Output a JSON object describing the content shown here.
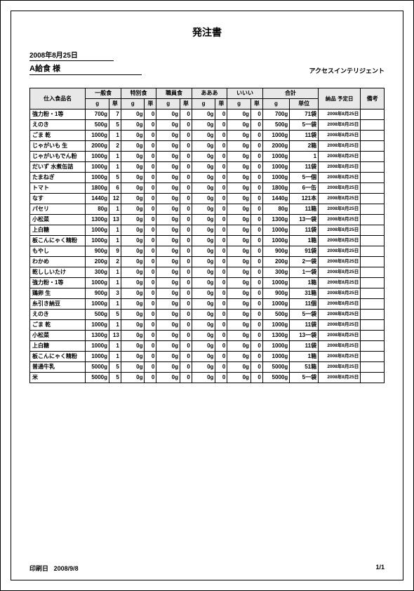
{
  "title": "発注書",
  "order_date": "2008年8月25日",
  "vendor": "A給食  様",
  "company": "アクセスインテリジェント",
  "footer": {
    "print_label": "印刷日",
    "print_date": "2008/9/8",
    "page": "1/1"
  },
  "table": {
    "headers": {
      "name": "仕入食品名",
      "cat1": "一般食",
      "cat2": "特別食",
      "cat3": "職員食",
      "cat4": "あああ",
      "cat5": "いいい",
      "total": "合計",
      "delivery": "納品\n予定日",
      "note": "備考",
      "g": "g",
      "u": "単",
      "tu": "単位"
    },
    "rows": [
      {
        "name": "強力粉・1等",
        "c1g": "700g",
        "c1u": "7",
        "c2g": "0g",
        "c2u": "0",
        "c3g": "0g",
        "c3u": "0",
        "c4g": "0g",
        "c4u": "0",
        "c5g": "0g",
        "c5u": "0",
        "tg": "700g",
        "tu": "71袋",
        "dd": "2008年8月25日"
      },
      {
        "name": "えのき",
        "c1g": "500g",
        "c1u": "5",
        "c2g": "0g",
        "c2u": "0",
        "c3g": "0g",
        "c3u": "0",
        "c4g": "0g",
        "c4u": "0",
        "c5g": "0g",
        "c5u": "0",
        "tg": "500g",
        "tu": "5一袋",
        "dd": "2008年8月25日"
      },
      {
        "name": "ごま 乾",
        "c1g": "1000g",
        "c1u": "1",
        "c2g": "0g",
        "c2u": "0",
        "c3g": "0g",
        "c3u": "0",
        "c4g": "0g",
        "c4u": "0",
        "c5g": "0g",
        "c5u": "0",
        "tg": "1000g",
        "tu": "11袋",
        "dd": "2008年8月25日"
      },
      {
        "name": "じゃがいも 生",
        "c1g": "2000g",
        "c1u": "2",
        "c2g": "0g",
        "c2u": "0",
        "c3g": "0g",
        "c3u": "0",
        "c4g": "0g",
        "c4u": "0",
        "c5g": "0g",
        "c5u": "0",
        "tg": "2000g",
        "tu": "2箱",
        "dd": "2008年8月25日"
      },
      {
        "name": "じゃがいもでん粉",
        "c1g": "1000g",
        "c1u": "1",
        "c2g": "0g",
        "c2u": "0",
        "c3g": "0g",
        "c3u": "0",
        "c4g": "0g",
        "c4u": "0",
        "c5g": "0g",
        "c5u": "0",
        "tg": "1000g",
        "tu": "1",
        "dd": "2008年8月25日"
      },
      {
        "name": "だいず 水煮缶詰",
        "c1g": "1000g",
        "c1u": "1",
        "c2g": "0g",
        "c2u": "0",
        "c3g": "0g",
        "c3u": "0",
        "c4g": "0g",
        "c4u": "0",
        "c5g": "0g",
        "c5u": "0",
        "tg": "1000g",
        "tu": "11袋",
        "dd": "2008年8月25日"
      },
      {
        "name": "たまねぎ",
        "c1g": "1000g",
        "c1u": "5",
        "c2g": "0g",
        "c2u": "0",
        "c3g": "0g",
        "c3u": "0",
        "c4g": "0g",
        "c4u": "0",
        "c5g": "0g",
        "c5u": "0",
        "tg": "1000g",
        "tu": "5一個",
        "dd": "2008年8月25日"
      },
      {
        "name": "トマト",
        "c1g": "1800g",
        "c1u": "6",
        "c2g": "0g",
        "c2u": "0",
        "c3g": "0g",
        "c3u": "0",
        "c4g": "0g",
        "c4u": "0",
        "c5g": "0g",
        "c5u": "0",
        "tg": "1800g",
        "tu": "6一缶",
        "dd": "2008年8月25日"
      },
      {
        "name": "なす",
        "c1g": "1440g",
        "c1u": "12",
        "c2g": "0g",
        "c2u": "0",
        "c3g": "0g",
        "c3u": "0",
        "c4g": "0g",
        "c4u": "0",
        "c5g": "0g",
        "c5u": "0",
        "tg": "1440g",
        "tu": "121本",
        "dd": "2008年8月25日"
      },
      {
        "name": "パセリ",
        "c1g": "80g",
        "c1u": "1",
        "c2g": "0g",
        "c2u": "0",
        "c3g": "0g",
        "c3u": "0",
        "c4g": "0g",
        "c4u": "0",
        "c5g": "0g",
        "c5u": "0",
        "tg": "80g",
        "tu": "11箱",
        "dd": "2008年8月25日"
      },
      {
        "name": "小松菜",
        "c1g": "1300g",
        "c1u": "13",
        "c2g": "0g",
        "c2u": "0",
        "c3g": "0g",
        "c3u": "0",
        "c4g": "0g",
        "c4u": "0",
        "c5g": "0g",
        "c5u": "0",
        "tg": "1300g",
        "tu": "13一袋",
        "dd": "2008年8月25日"
      },
      {
        "name": "上白糖",
        "c1g": "1000g",
        "c1u": "1",
        "c2g": "0g",
        "c2u": "0",
        "c3g": "0g",
        "c3u": "0",
        "c4g": "0g",
        "c4u": "0",
        "c5g": "0g",
        "c5u": "0",
        "tg": "1000g",
        "tu": "11袋",
        "dd": "2008年8月25日"
      },
      {
        "name": "板こんにゃく精粉",
        "c1g": "1000g",
        "c1u": "1",
        "c2g": "0g",
        "c2u": "0",
        "c3g": "0g",
        "c3u": "0",
        "c4g": "0g",
        "c4u": "0",
        "c5g": "0g",
        "c5u": "0",
        "tg": "1000g",
        "tu": "1箱",
        "dd": "2008年8月25日"
      },
      {
        "name": "もやし",
        "c1g": "900g",
        "c1u": "9",
        "c2g": "0g",
        "c2u": "0",
        "c3g": "0g",
        "c3u": "0",
        "c4g": "0g",
        "c4u": "0",
        "c5g": "0g",
        "c5u": "0",
        "tg": "900g",
        "tu": "91袋",
        "dd": "2008年8月25日"
      },
      {
        "name": "わかめ",
        "c1g": "200g",
        "c1u": "2",
        "c2g": "0g",
        "c2u": "0",
        "c3g": "0g",
        "c3u": "0",
        "c4g": "0g",
        "c4u": "0",
        "c5g": "0g",
        "c5u": "0",
        "tg": "200g",
        "tu": "2一袋",
        "dd": "2008年8月25日"
      },
      {
        "name": "乾ししいたけ",
        "c1g": "300g",
        "c1u": "1",
        "c2g": "0g",
        "c2u": "0",
        "c3g": "0g",
        "c3u": "0",
        "c4g": "0g",
        "c4u": "0",
        "c5g": "0g",
        "c5u": "0",
        "tg": "300g",
        "tu": "1一袋",
        "dd": "2008年8月25日"
      },
      {
        "name": "強力粉・1等",
        "c1g": "1000g",
        "c1u": "1",
        "c2g": "0g",
        "c2u": "0",
        "c3g": "0g",
        "c3u": "0",
        "c4g": "0g",
        "c4u": "0",
        "c5g": "0g",
        "c5u": "0",
        "tg": "1000g",
        "tu": "1箱",
        "dd": "2008年8月25日"
      },
      {
        "name": "鶏卵 生",
        "c1g": "900g",
        "c1u": "3",
        "c2g": "0g",
        "c2u": "0",
        "c3g": "0g",
        "c3u": "0",
        "c4g": "0g",
        "c4u": "0",
        "c5g": "0g",
        "c5u": "0",
        "tg": "900g",
        "tu": "31箱",
        "dd": "2008年8月25日"
      },
      {
        "name": "糸引き納豆",
        "c1g": "1000g",
        "c1u": "1",
        "c2g": "0g",
        "c2u": "0",
        "c3g": "0g",
        "c3u": "0",
        "c4g": "0g",
        "c4u": "0",
        "c5g": "0g",
        "c5u": "0",
        "tg": "1000g",
        "tu": "11個",
        "dd": "2008年8月25日"
      },
      {
        "name": "えのき",
        "c1g": "500g",
        "c1u": "5",
        "c2g": "0g",
        "c2u": "0",
        "c3g": "0g",
        "c3u": "0",
        "c4g": "0g",
        "c4u": "0",
        "c5g": "0g",
        "c5u": "0",
        "tg": "500g",
        "tu": "5一袋",
        "dd": "2008年8月25日"
      },
      {
        "name": "ごま 乾",
        "c1g": "1000g",
        "c1u": "1",
        "c2g": "0g",
        "c2u": "0",
        "c3g": "0g",
        "c3u": "0",
        "c4g": "0g",
        "c4u": "0",
        "c5g": "0g",
        "c5u": "0",
        "tg": "1000g",
        "tu": "11袋",
        "dd": "2008年8月25日"
      },
      {
        "name": "小松菜",
        "c1g": "1300g",
        "c1u": "13",
        "c2g": "0g",
        "c2u": "0",
        "c3g": "0g",
        "c3u": "0",
        "c4g": "0g",
        "c4u": "0",
        "c5g": "0g",
        "c5u": "0",
        "tg": "1300g",
        "tu": "13一袋",
        "dd": "2008年8月25日"
      },
      {
        "name": "上白糖",
        "c1g": "1000g",
        "c1u": "1",
        "c2g": "0g",
        "c2u": "0",
        "c3g": "0g",
        "c3u": "0",
        "c4g": "0g",
        "c4u": "0",
        "c5g": "0g",
        "c5u": "0",
        "tg": "1000g",
        "tu": "11袋",
        "dd": "2008年8月25日"
      },
      {
        "name": "板こんにゃく精粉",
        "c1g": "1000g",
        "c1u": "1",
        "c2g": "0g",
        "c2u": "0",
        "c3g": "0g",
        "c3u": "0",
        "c4g": "0g",
        "c4u": "0",
        "c5g": "0g",
        "c5u": "0",
        "tg": "1000g",
        "tu": "1箱",
        "dd": "2008年8月25日"
      },
      {
        "name": "普通牛乳",
        "c1g": "5000g",
        "c1u": "5",
        "c2g": "0g",
        "c2u": "0",
        "c3g": "0g",
        "c3u": "0",
        "c4g": "0g",
        "c4u": "0",
        "c5g": "0g",
        "c5u": "0",
        "tg": "5000g",
        "tu": "51箱",
        "dd": "2008年8月25日"
      },
      {
        "name": "米",
        "c1g": "5000g",
        "c1u": "5",
        "c2g": "0g",
        "c2u": "0",
        "c3g": "0g",
        "c3u": "0",
        "c4g": "0g",
        "c4u": "0",
        "c5g": "0g",
        "c5u": "0",
        "tg": "5000g",
        "tu": "5一袋",
        "dd": "2008年8月25日"
      }
    ]
  }
}
